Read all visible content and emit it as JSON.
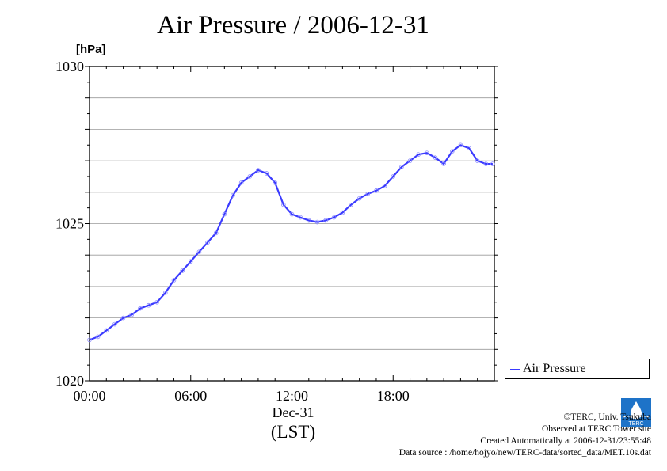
{
  "chart_data": {
    "type": "line",
    "title": "Air Pressure / 2006-12-31",
    "ylabel": "[hPa]",
    "xlabel": "(LST)",
    "date_label": "Dec-31",
    "xlim": [
      0,
      24
    ],
    "ylim": [
      1020,
      1030
    ],
    "x_tick_labels": [
      "00:00",
      "06:00",
      "12:00",
      "18:00"
    ],
    "x_ticks": [
      0,
      6,
      12,
      18
    ],
    "y_tick_labels": [
      "1020",
      "1025",
      "1030"
    ],
    "y_ticks": [
      1020,
      1025,
      1030
    ],
    "grid": true,
    "legend_position": "outside-right-bottom",
    "series": [
      {
        "name": "Air Pressure",
        "color": "#3a3aff",
        "x": [
          0,
          0.5,
          1,
          1.5,
          2,
          2.5,
          3,
          3.5,
          4,
          4.5,
          5,
          5.5,
          6,
          6.5,
          7,
          7.5,
          8,
          8.5,
          9,
          9.5,
          10,
          10.5,
          11,
          11.5,
          12,
          12.5,
          13,
          13.5,
          14,
          14.5,
          15,
          15.5,
          16,
          16.5,
          17,
          17.5,
          18,
          18.5,
          19,
          19.5,
          20,
          20.5,
          21,
          21.5,
          22,
          22.5,
          23,
          23.5,
          23.9
        ],
        "y": [
          1021.3,
          1021.4,
          1021.6,
          1021.8,
          1022.0,
          1022.1,
          1022.3,
          1022.4,
          1022.5,
          1022.8,
          1023.2,
          1023.5,
          1023.8,
          1024.1,
          1024.4,
          1024.7,
          1025.3,
          1025.9,
          1026.3,
          1026.5,
          1026.7,
          1026.6,
          1026.3,
          1025.6,
          1025.3,
          1025.2,
          1025.1,
          1025.05,
          1025.1,
          1025.2,
          1025.35,
          1025.6,
          1025.8,
          1025.95,
          1026.05,
          1026.2,
          1026.5,
          1026.8,
          1027.0,
          1027.2,
          1027.25,
          1027.1,
          1026.9,
          1027.3,
          1027.5,
          1027.4,
          1027.0,
          1026.9,
          1026.9
        ]
      }
    ]
  },
  "legend": {
    "label": "Air Pressure"
  },
  "footer": {
    "copyright": "©TERC, Univ. Tsukuba",
    "site": "Observed at TERC Tower site",
    "created": "Created Automatically at 2006-12-31/23:55:48",
    "source": "Data source : /home/hojyo/new/TERC-data/sorted_data/MET.10s.dat"
  },
  "logo": {
    "text": "TERC",
    "color": "#1e73c8"
  }
}
